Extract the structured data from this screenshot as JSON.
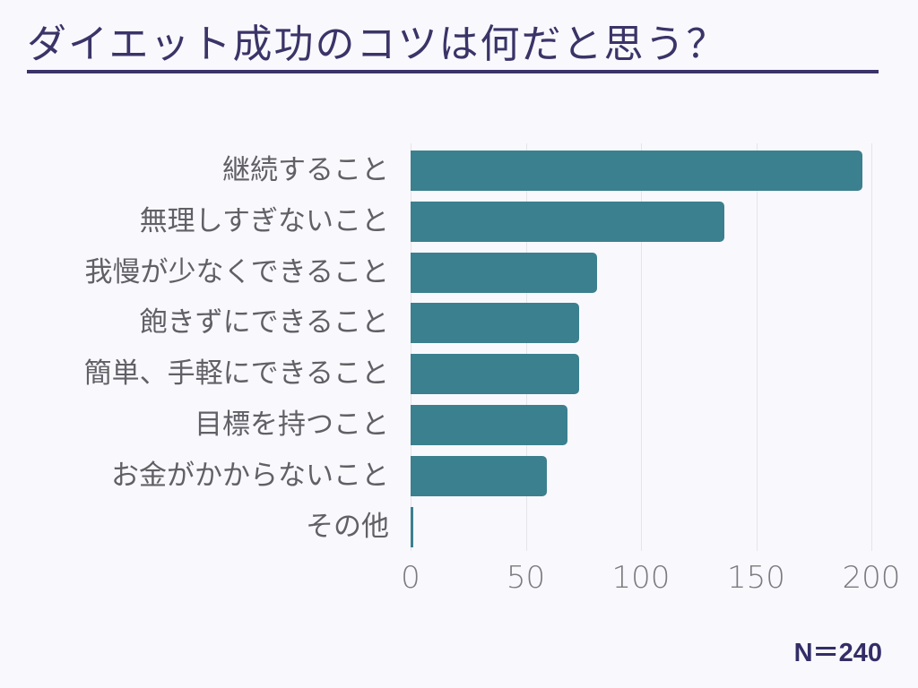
{
  "title": "ダイエット成功のコツは何だと思う？",
  "sample_size": "N＝240",
  "colors": {
    "bar": "#3b808f",
    "title": "#3a3468",
    "grid": "#e4e4ea",
    "label": "#606066",
    "background": "#f9f9fd"
  },
  "chart_data": {
    "type": "bar",
    "orientation": "horizontal",
    "title": "ダイエット成功のコツは何だと思う？",
    "categories": [
      "継続すること",
      "無理しすぎないこと",
      "我慢が少なくできること",
      "飽きずにできること",
      "簡単、手軽にできること",
      "目標を持つこと",
      "お金がかからないこと",
      "その他"
    ],
    "values": [
      196,
      136,
      81,
      73,
      73,
      68,
      59,
      1
    ],
    "xlabel": "",
    "ylabel": "",
    "xlim": [
      0,
      200
    ],
    "xticks": [
      "0",
      "50",
      "100",
      "150",
      "200"
    ],
    "grid": true,
    "annotation": "N＝240"
  }
}
